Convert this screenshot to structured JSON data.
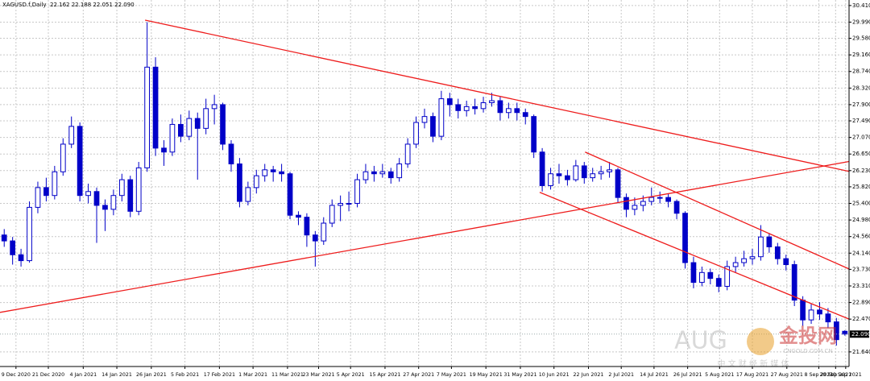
{
  "chart_data": {
    "type": "candlestick",
    "title": "XAGUSD.f,Daily",
    "header_values": "22.162 22.188 22.051 22.090",
    "candles": [
      [
        24.6,
        24.75,
        24.3,
        24.45
      ],
      [
        24.45,
        24.55,
        23.85,
        24.1
      ],
      [
        24.1,
        24.25,
        23.8,
        23.95
      ],
      [
        23.95,
        25.45,
        23.9,
        25.3
      ],
      [
        25.3,
        25.95,
        25.15,
        25.8
      ],
      [
        25.8,
        26.05,
        25.45,
        25.6
      ],
      [
        25.6,
        26.35,
        25.5,
        26.2
      ],
      [
        26.2,
        27.05,
        26.1,
        26.9
      ],
      [
        26.9,
        27.6,
        26.8,
        27.35
      ],
      [
        27.35,
        27.45,
        25.45,
        25.6
      ],
      [
        25.6,
        25.9,
        25.4,
        25.7
      ],
      [
        25.7,
        25.8,
        24.4,
        25.35
      ],
      [
        25.35,
        25.5,
        24.7,
        25.25
      ],
      [
        25.25,
        25.75,
        25.1,
        25.6
      ],
      [
        25.6,
        26.15,
        25.45,
        26.0
      ],
      [
        26.0,
        26.1,
        25.05,
        25.2
      ],
      [
        25.2,
        26.45,
        25.1,
        26.3
      ],
      [
        26.3,
        29.99,
        26.2,
        28.85
      ],
      [
        28.85,
        29.1,
        26.6,
        26.8
      ],
      [
        26.8,
        27.0,
        26.35,
        26.7
      ],
      [
        26.7,
        27.55,
        26.6,
        27.4
      ],
      [
        27.4,
        27.65,
        26.95,
        27.1
      ],
      [
        27.1,
        27.75,
        27.0,
        27.55
      ],
      [
        27.55,
        27.7,
        26.0,
        27.3
      ],
      [
        27.3,
        28.05,
        27.15,
        27.8
      ],
      [
        27.8,
        28.15,
        27.4,
        27.9
      ],
      [
        27.9,
        27.95,
        26.75,
        26.9
      ],
      [
        26.9,
        27.0,
        26.2,
        26.4
      ],
      [
        26.4,
        26.55,
        25.3,
        25.45
      ],
      [
        25.45,
        25.95,
        25.35,
        25.8
      ],
      [
        25.8,
        26.25,
        25.65,
        26.1
      ],
      [
        26.1,
        26.4,
        25.95,
        26.25
      ],
      [
        26.25,
        26.35,
        25.95,
        26.2
      ],
      [
        26.2,
        26.4,
        25.95,
        26.15
      ],
      [
        26.15,
        26.2,
        25.0,
        25.1
      ],
      [
        25.1,
        25.2,
        24.85,
        25.05
      ],
      [
        25.05,
        25.15,
        24.3,
        24.6
      ],
      [
        24.6,
        24.7,
        23.8,
        24.45
      ],
      [
        24.45,
        25.05,
        24.35,
        24.9
      ],
      [
        24.9,
        25.5,
        24.8,
        25.35
      ],
      [
        25.35,
        25.6,
        24.95,
        25.4
      ],
      [
        25.4,
        25.7,
        25.2,
        25.4
      ],
      [
        25.4,
        26.15,
        25.3,
        26.0
      ],
      [
        26.0,
        26.4,
        25.9,
        26.2
      ],
      [
        26.2,
        26.35,
        25.95,
        26.15
      ],
      [
        26.15,
        26.4,
        26.05,
        26.2
      ],
      [
        26.2,
        26.3,
        25.9,
        26.05
      ],
      [
        26.05,
        26.55,
        25.95,
        26.4
      ],
      [
        26.4,
        27.05,
        26.3,
        26.9
      ],
      [
        26.9,
        27.6,
        26.8,
        27.45
      ],
      [
        27.45,
        27.8,
        27.3,
        27.6
      ],
      [
        27.6,
        27.7,
        26.95,
        27.1
      ],
      [
        27.1,
        28.25,
        27.0,
        28.05
      ],
      [
        28.05,
        28.2,
        27.6,
        27.9
      ],
      [
        27.9,
        28.05,
        27.55,
        27.75
      ],
      [
        27.75,
        28.0,
        27.6,
        27.85
      ],
      [
        27.85,
        28.05,
        27.65,
        27.8
      ],
      [
        27.8,
        28.1,
        27.7,
        27.95
      ],
      [
        27.95,
        28.2,
        27.85,
        28.0
      ],
      [
        28.0,
        28.1,
        27.5,
        27.7
      ],
      [
        27.7,
        27.95,
        27.55,
        27.8
      ],
      [
        27.8,
        27.95,
        27.5,
        27.7
      ],
      [
        27.7,
        27.8,
        27.4,
        27.6
      ],
      [
        27.6,
        27.65,
        26.55,
        26.7
      ],
      [
        26.7,
        26.8,
        25.7,
        25.85
      ],
      [
        25.85,
        26.3,
        25.75,
        26.15
      ],
      [
        26.15,
        26.4,
        25.9,
        26.1
      ],
      [
        26.1,
        26.25,
        25.85,
        26.0
      ],
      [
        26.0,
        26.5,
        25.95,
        26.35
      ],
      [
        26.35,
        26.45,
        25.9,
        26.05
      ],
      [
        26.05,
        26.3,
        25.95,
        26.15
      ],
      [
        26.15,
        26.35,
        26.0,
        26.2
      ],
      [
        26.2,
        26.45,
        26.05,
        26.25
      ],
      [
        26.25,
        26.3,
        25.4,
        25.55
      ],
      [
        25.55,
        25.65,
        25.05,
        25.25
      ],
      [
        25.25,
        25.55,
        25.1,
        25.35
      ],
      [
        25.35,
        25.6,
        25.2,
        25.45
      ],
      [
        25.45,
        25.8,
        25.35,
        25.55
      ],
      [
        25.55,
        25.7,
        25.4,
        25.55
      ],
      [
        25.55,
        25.65,
        25.3,
        25.45
      ],
      [
        25.45,
        25.5,
        25.0,
        25.15
      ],
      [
        25.15,
        25.2,
        23.75,
        23.9
      ],
      [
        23.9,
        24.05,
        23.25,
        23.4
      ],
      [
        23.4,
        23.8,
        23.3,
        23.65
      ],
      [
        23.65,
        23.75,
        23.35,
        23.5
      ],
      [
        23.5,
        23.6,
        23.15,
        23.3
      ],
      [
        23.3,
        23.95,
        23.2,
        23.8
      ],
      [
        23.8,
        24.05,
        23.65,
        23.9
      ],
      [
        23.9,
        24.2,
        23.8,
        24.0
      ],
      [
        24.0,
        24.25,
        23.85,
        24.05
      ],
      [
        24.05,
        24.85,
        23.95,
        24.55
      ],
      [
        24.55,
        24.65,
        24.15,
        24.3
      ],
      [
        24.3,
        24.4,
        23.85,
        24.0
      ],
      [
        24.0,
        24.1,
        23.7,
        23.85
      ],
      [
        23.85,
        23.95,
        22.8,
        22.95
      ],
      [
        22.95,
        23.05,
        22.3,
        22.45
      ],
      [
        22.45,
        22.85,
        22.35,
        22.7
      ],
      [
        22.7,
        22.9,
        22.45,
        22.6
      ],
      [
        22.6,
        22.75,
        22.25,
        22.4
      ],
      [
        22.4,
        22.5,
        21.8,
        21.95
      ],
      [
        22.162,
        22.188,
        22.051,
        22.09
      ]
    ],
    "color": "#0000c8",
    "xlim": [
      -0.5,
      100.5
    ],
    "xticks": [
      {
        "value": 1.4,
        "label": "9 Dec 2020"
      },
      {
        "value": 5.25,
        "label": "21 Dec 2020"
      },
      {
        "value": 9.4,
        "label": "4 Jan 2021"
      },
      {
        "value": 13.4,
        "label": "14 Jan 2021"
      },
      {
        "value": 17.5,
        "label": "26 Jan 2021"
      },
      {
        "value": 21.5,
        "label": "5 Feb 2021"
      },
      {
        "value": 25.6,
        "label": "17 Feb 2021"
      },
      {
        "value": 29.6,
        "label": "1 Mar 2021"
      },
      {
        "value": 33.7,
        "label": "11 Mar 2021"
      },
      {
        "value": 37.4,
        "label": "23 Mar 2021"
      },
      {
        "value": 41.2,
        "label": "5 Apr 2021"
      },
      {
        "value": 45.3,
        "label": "15 Apr 2021"
      },
      {
        "value": 49.3,
        "label": "27 Apr 2021"
      },
      {
        "value": 53.2,
        "label": "7 May 2021"
      },
      {
        "value": 57.3,
        "label": "19 May 2021"
      },
      {
        "value": 61.4,
        "label": "31 May 2021"
      },
      {
        "value": 65.4,
        "label": "10 Jun 2021"
      },
      {
        "value": 69.5,
        "label": "22 Jun 2021"
      },
      {
        "value": 73.4,
        "label": "2 Jul 2021"
      },
      {
        "value": 77.3,
        "label": "14 Jul 2021"
      },
      {
        "value": 81.3,
        "label": "26 Jul 2021"
      },
      {
        "value": 85.1,
        "label": "5 Aug 2021"
      },
      {
        "value": 89.0,
        "label": "17 Aug 2021"
      },
      {
        "value": 93.1,
        "label": "27 Aug 2021"
      },
      {
        "value": 96.9,
        "label": "8 Sep 2021"
      },
      {
        "value": 98.9,
        "label": "20 Sep 2021"
      },
      {
        "value": 100.1,
        "label": "30 Sep 2021"
      }
    ],
    "ylim": [
      21.27,
      30.55
    ],
    "yticks": [
      {
        "value": 30.41,
        "label": "30.410"
      },
      {
        "value": 29.99,
        "label": "29.990"
      },
      {
        "value": 29.58,
        "label": "29.580"
      },
      {
        "value": 29.16,
        "label": "29.160"
      },
      {
        "value": 28.74,
        "label": "28.740"
      },
      {
        "value": 28.32,
        "label": "28.320"
      },
      {
        "value": 27.9,
        "label": "27.900"
      },
      {
        "value": 27.49,
        "label": "27.490"
      },
      {
        "value": 27.07,
        "label": "27.070"
      },
      {
        "value": 26.65,
        "label": "26.650"
      },
      {
        "value": 26.23,
        "label": "26.230"
      },
      {
        "value": 25.82,
        "label": "25.820"
      },
      {
        "value": 25.4,
        "label": "25.400"
      },
      {
        "value": 24.98,
        "label": "24.980"
      },
      {
        "value": 24.56,
        "label": "24.560"
      },
      {
        "value": 24.14,
        "label": "24.140"
      },
      {
        "value": 23.73,
        "label": "23.730"
      },
      {
        "value": 23.31,
        "label": "23.310"
      },
      {
        "value": 22.89,
        "label": "22.890"
      },
      {
        "value": 22.47,
        "label": "22.470"
      },
      {
        "value": 21.64,
        "label": "21.640"
      }
    ],
    "current_price": {
      "value": 22.09,
      "label": "22.090"
    },
    "grid": true,
    "trendline_color": "#ee1c1c",
    "trendlines": [
      {
        "x": [
          16.76,
          100.5
        ],
        "y": [
          30.04,
          26.21
        ]
      },
      {
        "x": [
          -0.5,
          100.5
        ],
        "y": [
          22.64,
          26.46
        ]
      },
      {
        "x": [
          69.1,
          100.5
        ],
        "y": [
          26.7,
          23.74
        ]
      },
      {
        "x": [
          63.7,
          100.5
        ],
        "y": [
          25.68,
          22.47
        ]
      }
    ],
    "watermark": {
      "brand": "AUG",
      "site": "金投网",
      "url": "CNGOLD.COM.CN",
      "slogan": "中 文 财 经 新 媒 体"
    }
  }
}
